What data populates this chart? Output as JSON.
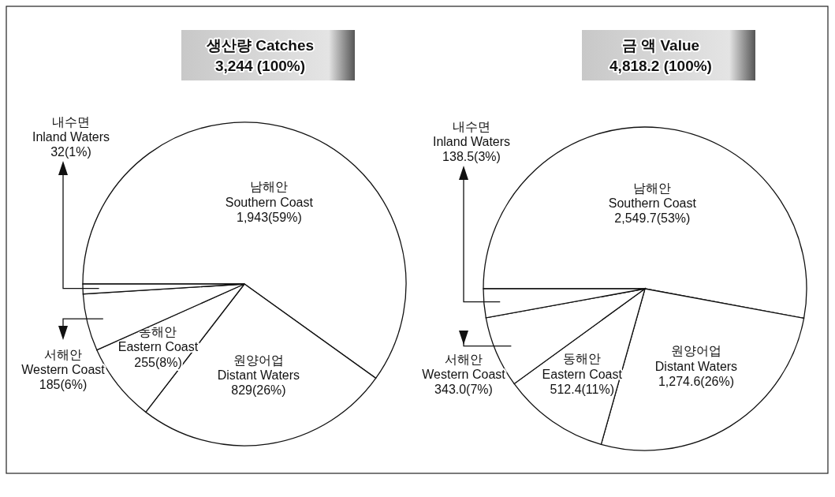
{
  "chart_data": [
    {
      "type": "pie",
      "title": "생산량  Catches",
      "subtitle": "3,244  (100%)",
      "categories": [
        "남해안\nSouthern Coast",
        "원양어업\nDistant Waters",
        "동해안\nEastern Coast",
        "서해안\nWestern Coast",
        "내수면\nInland Waters"
      ],
      "values": [
        1943,
        829,
        255,
        185,
        32
      ],
      "value_labels": [
        "1,943(59%)",
        "829(26%)",
        "255(8%)",
        "185(6%)",
        "32(1%)"
      ],
      "colors": [
        "#ffffff",
        "#ffffff",
        "#ffffff",
        "#ffffff",
        "#ffffff"
      ]
    },
    {
      "type": "pie",
      "title": "금  액  Value",
      "subtitle": "4,818.2  (100%)",
      "categories": [
        "남해안\nSouthern Coast",
        "원양어업\nDistant Waters",
        "동해안\nEastern Coast",
        "서해안\nWestern Coast",
        "내수면\nInland Waters"
      ],
      "values": [
        2549.7,
        1274.6,
        512.4,
        343.0,
        138.5
      ],
      "value_labels": [
        "2,549.7(53%)",
        "1,274.6(26%)",
        "512.4(11%)",
        "343.0(7%)",
        "138.5(3%)"
      ],
      "colors": [
        "#ffffff",
        "#ffffff",
        "#ffffff",
        "#ffffff",
        "#ffffff"
      ]
    }
  ]
}
